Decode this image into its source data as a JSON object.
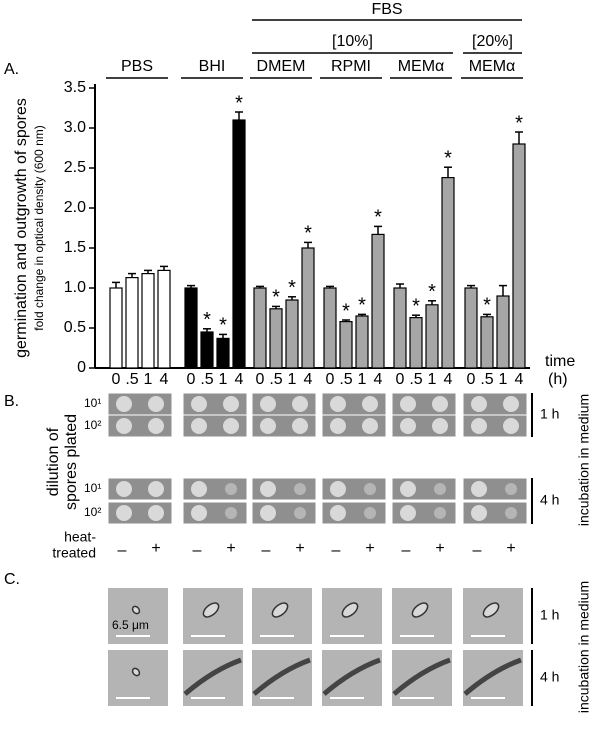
{
  "chart_data": {
    "type": "bar",
    "panel_label": "A.",
    "y_label": "germination and outgrowth of spores",
    "y_sublabel": "fold change in optical density (600 nm)",
    "x_label": "time",
    "x_unit": "(h)",
    "categories": [
      "0",
      ".5",
      "1",
      "4"
    ],
    "ylim": [
      0,
      3.5
    ],
    "yticks": [
      0,
      0.5,
      {
        "value": 1,
        "label": "1.0"
      },
      1.5,
      {
        "value": 2,
        "label": "2.0"
      },
      2.5,
      {
        "value": 3,
        "label": "3.0"
      },
      3.5
    ],
    "headers": [
      "FBS",
      "[10%]",
      "[20%]"
    ],
    "groups": [
      {
        "name": "PBS",
        "color": "#ffffff",
        "values": [
          1.0,
          1.13,
          1.18,
          1.22
        ],
        "errors": [
          0.07,
          0.05,
          0.04,
          0.05
        ],
        "stars": [
          null,
          null,
          null,
          null
        ]
      },
      {
        "name": "BHI",
        "color": "#000000",
        "values": [
          1.0,
          0.45,
          0.37,
          3.1
        ],
        "errors": [
          0.03,
          0.04,
          0.05,
          0.1
        ],
        "stars": [
          null,
          "*",
          "*",
          "*"
        ]
      },
      {
        "name": "DMEM",
        "color": "#a6a6a6",
        "values": [
          1.0,
          0.74,
          0.85,
          1.5
        ],
        "errors": [
          0.02,
          0.03,
          0.04,
          0.07
        ],
        "stars": [
          null,
          "*",
          "*",
          "*"
        ]
      },
      {
        "name": "RPMI",
        "color": "#a6a6a6",
        "values": [
          1.0,
          0.58,
          0.65,
          1.67
        ],
        "errors": [
          0.02,
          0.02,
          0.02,
          0.1
        ],
        "stars": [
          null,
          "*",
          "*",
          "*"
        ]
      },
      {
        "name": "MEMα",
        "color": "#a6a6a6",
        "values": [
          1.0,
          0.63,
          0.79,
          2.38
        ],
        "errors": [
          0.05,
          0.03,
          0.05,
          0.13
        ],
        "stars": [
          null,
          "*",
          "*",
          "*"
        ]
      },
      {
        "name": "MEMα",
        "color": "#a6a6a6",
        "values": [
          1.0,
          0.64,
          0.9,
          2.8
        ],
        "errors": [
          0.03,
          0.03,
          0.13,
          0.15
        ],
        "stars": [
          null,
          "*",
          null,
          "*"
        ]
      }
    ]
  },
  "panel_b": {
    "label": "B.",
    "y_label": [
      "dilution of",
      "spores plated"
    ],
    "dilutions": [
      "10¹",
      "10²"
    ],
    "times": [
      "1 h",
      "4 h"
    ],
    "side_label": "incubation in medium",
    "treatment_label": [
      "heat-",
      "treated"
    ],
    "treatment_signs": [
      "–",
      "+"
    ]
  },
  "panel_c": {
    "label": "C.",
    "scale_bar": "6.5 μm",
    "times": [
      "1 h",
      "4 h"
    ],
    "side_label": "incubation in medium"
  }
}
